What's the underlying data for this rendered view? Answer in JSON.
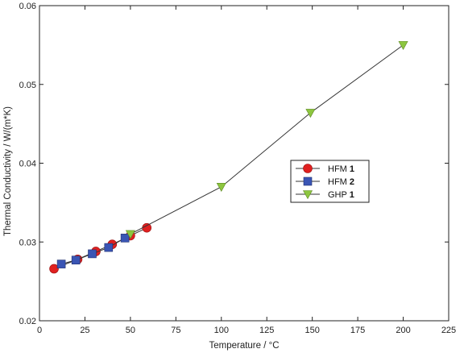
{
  "chart_data": {
    "type": "line",
    "xlabel": "Temperature / °C",
    "ylabel": "Thermal Conductivity / W/(m*K)",
    "xlim": [
      0,
      225
    ],
    "ylim": [
      0.02,
      0.06
    ],
    "x_ticks": [
      0,
      25,
      50,
      75,
      100,
      125,
      150,
      175,
      200,
      225
    ],
    "y_ticks": [
      0.02,
      0.03,
      0.04,
      0.05,
      0.06
    ],
    "x_tick_labels": [
      "0",
      "25",
      "50",
      "75",
      "100",
      "125",
      "150",
      "175",
      "200",
      "225"
    ],
    "y_tick_labels": [
      "0.02",
      "0.03",
      "0.04",
      "0.05",
      "0.06"
    ],
    "grid": false,
    "legend_position": "center-right",
    "series": [
      {
        "name": "HFM 1",
        "legend_base": "HFM ",
        "legend_bold": "1",
        "marker": "circle",
        "color": "#e02020",
        "x": [
          8,
          21,
          31,
          40,
          50,
          59
        ],
        "y": [
          0.0266,
          0.0278,
          0.0288,
          0.0297,
          0.0308,
          0.0318
        ]
      },
      {
        "name": "HFM 2",
        "legend_base": "HFM ",
        "legend_bold": "2",
        "marker": "square",
        "color": "#3a55b4",
        "x": [
          12,
          20,
          29,
          38,
          47
        ],
        "y": [
          0.0272,
          0.0277,
          0.0285,
          0.0293,
          0.0305
        ]
      },
      {
        "name": "GHP 1",
        "legend_base": "GHP ",
        "legend_bold": "1",
        "marker": "triangle-down",
        "color": "#8dc63f",
        "x": [
          50,
          100,
          149,
          200
        ],
        "y": [
          0.031,
          0.037,
          0.0464,
          0.055
        ]
      }
    ]
  }
}
